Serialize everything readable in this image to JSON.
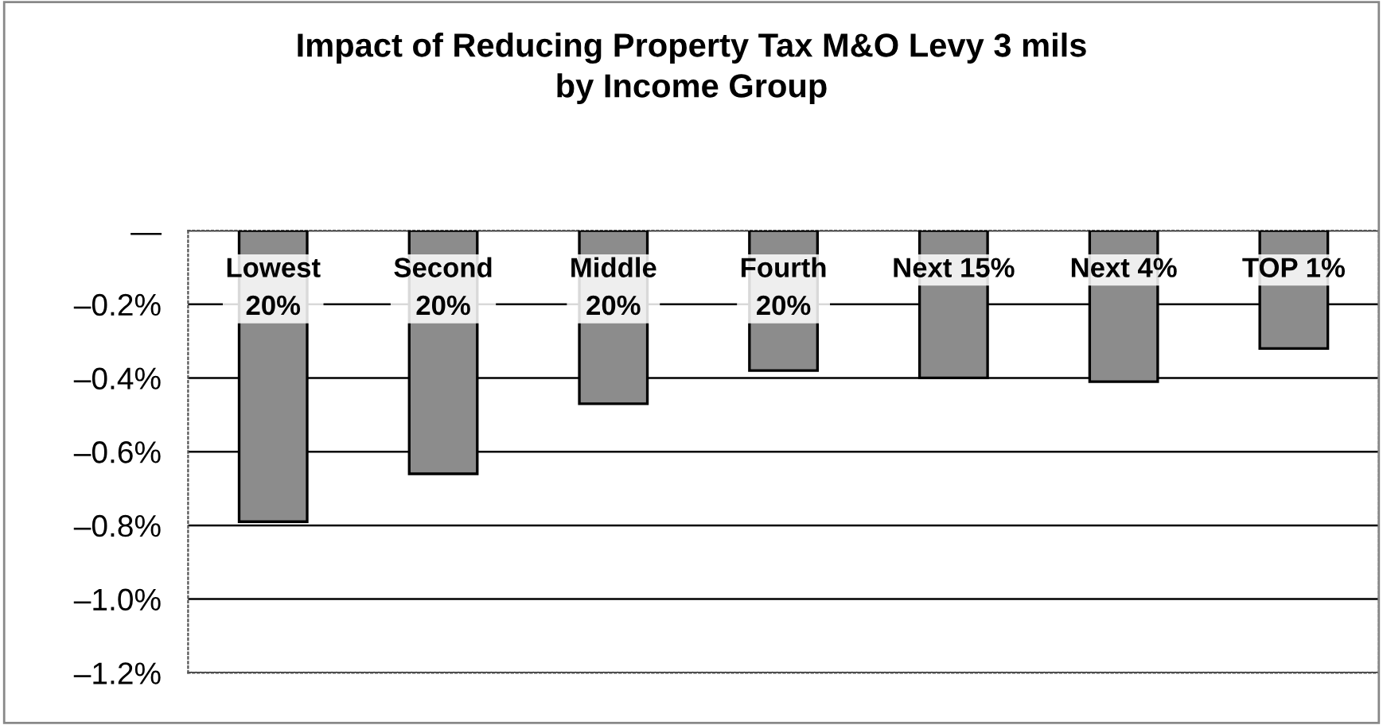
{
  "chart_data": {
    "type": "bar",
    "title": "Impact of Reducing Property Tax M&O Levy 3 mils\nby Income Group",
    "categories": [
      "Lowest\n20%",
      "Second\n20%",
      "Middle\n20%",
      "Fourth\n20%",
      "Next 15%",
      "Next 4%",
      "TOP 1%"
    ],
    "values": [
      -0.79,
      -0.66,
      -0.47,
      -0.38,
      -0.4,
      -0.41,
      -0.32
    ],
    "color": "#8c8c8c",
    "ylim": [
      -1.2,
      0
    ],
    "yticks": [
      {
        "value": 0,
        "label": "—"
      },
      {
        "value": -0.2,
        "label": "–0.2%"
      },
      {
        "value": -0.4,
        "label": "–0.4%"
      },
      {
        "value": -0.6,
        "label": "–0.6%"
      },
      {
        "value": -0.8,
        "label": "–0.8%"
      },
      {
        "value": -1.0,
        "label": "–1.0%"
      },
      {
        "value": -1.2,
        "label": "–1.2%"
      }
    ],
    "grid": "y"
  }
}
